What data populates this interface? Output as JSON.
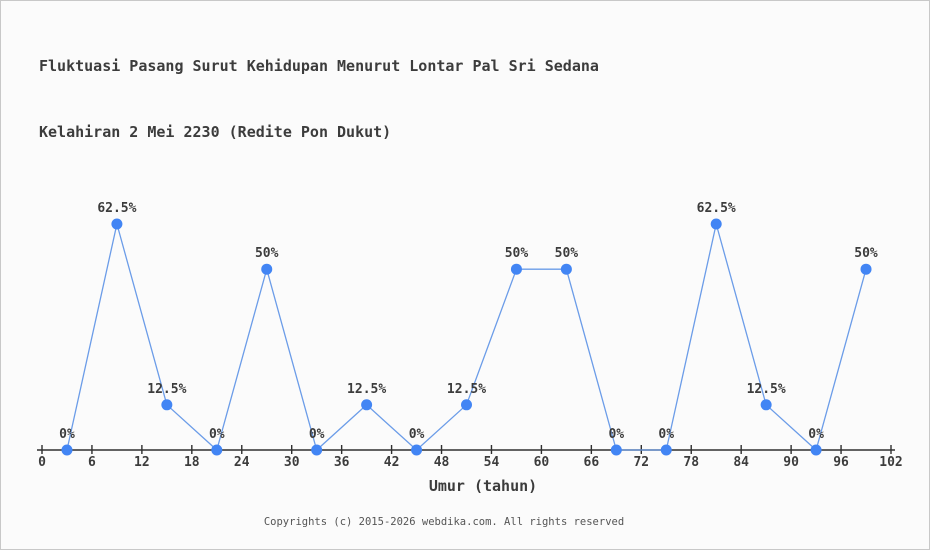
{
  "page": {
    "background": "#fbfbfb",
    "border_color": "#c8c8c8"
  },
  "title": {
    "line1": "Fluktuasi Pasang Surut Kehidupan Menurut Lontar Pal Sri Sedana",
    "line2": "Kelahiran 2 Mei 2230 (Redite Pon Dukut)",
    "color": "#3c3c3c"
  },
  "chart_data": {
    "type": "line",
    "title": "Fluktuasi Pasang Surut Kehidupan Menurut Lontar Pal Sri Sedana Kelahiran 2 Mei 2230 (Redite Pon Dukut)",
    "xlabel": "Umur (tahun)",
    "ylabel": "",
    "x": [
      3,
      9,
      15,
      21,
      27,
      33,
      39,
      45,
      51,
      57,
      63,
      69,
      75,
      81,
      87,
      93,
      99
    ],
    "values": [
      0,
      62.5,
      12.5,
      0,
      50,
      0,
      12.5,
      0,
      12.5,
      50,
      50,
      0,
      0,
      62.5,
      12.5,
      0,
      50
    ],
    "point_labels": [
      "0%",
      "62.5%",
      "12.5%",
      "0%",
      "50%",
      "0%",
      "12.5%",
      "0%",
      "12.5%",
      "50%",
      "50%",
      "0%",
      "0%",
      "62.5%",
      "12.5%",
      "0%",
      "50%"
    ],
    "x_ticks": [
      0,
      6,
      12,
      18,
      24,
      30,
      36,
      42,
      48,
      54,
      60,
      66,
      72,
      78,
      84,
      90,
      96,
      102
    ],
    "xlim": [
      0,
      102
    ],
    "ylim": [
      0,
      70
    ],
    "grid": false,
    "legend": "none",
    "line_color": "#6b9ce8",
    "marker_color": "#4285f4",
    "axis_color": "#2f2f2f",
    "label_color": "#3c3c3c"
  },
  "footer": {
    "copyright": "Copyrights (c) 2015-2026 webdika.com. All rights reserved",
    "color": "#555555"
  }
}
